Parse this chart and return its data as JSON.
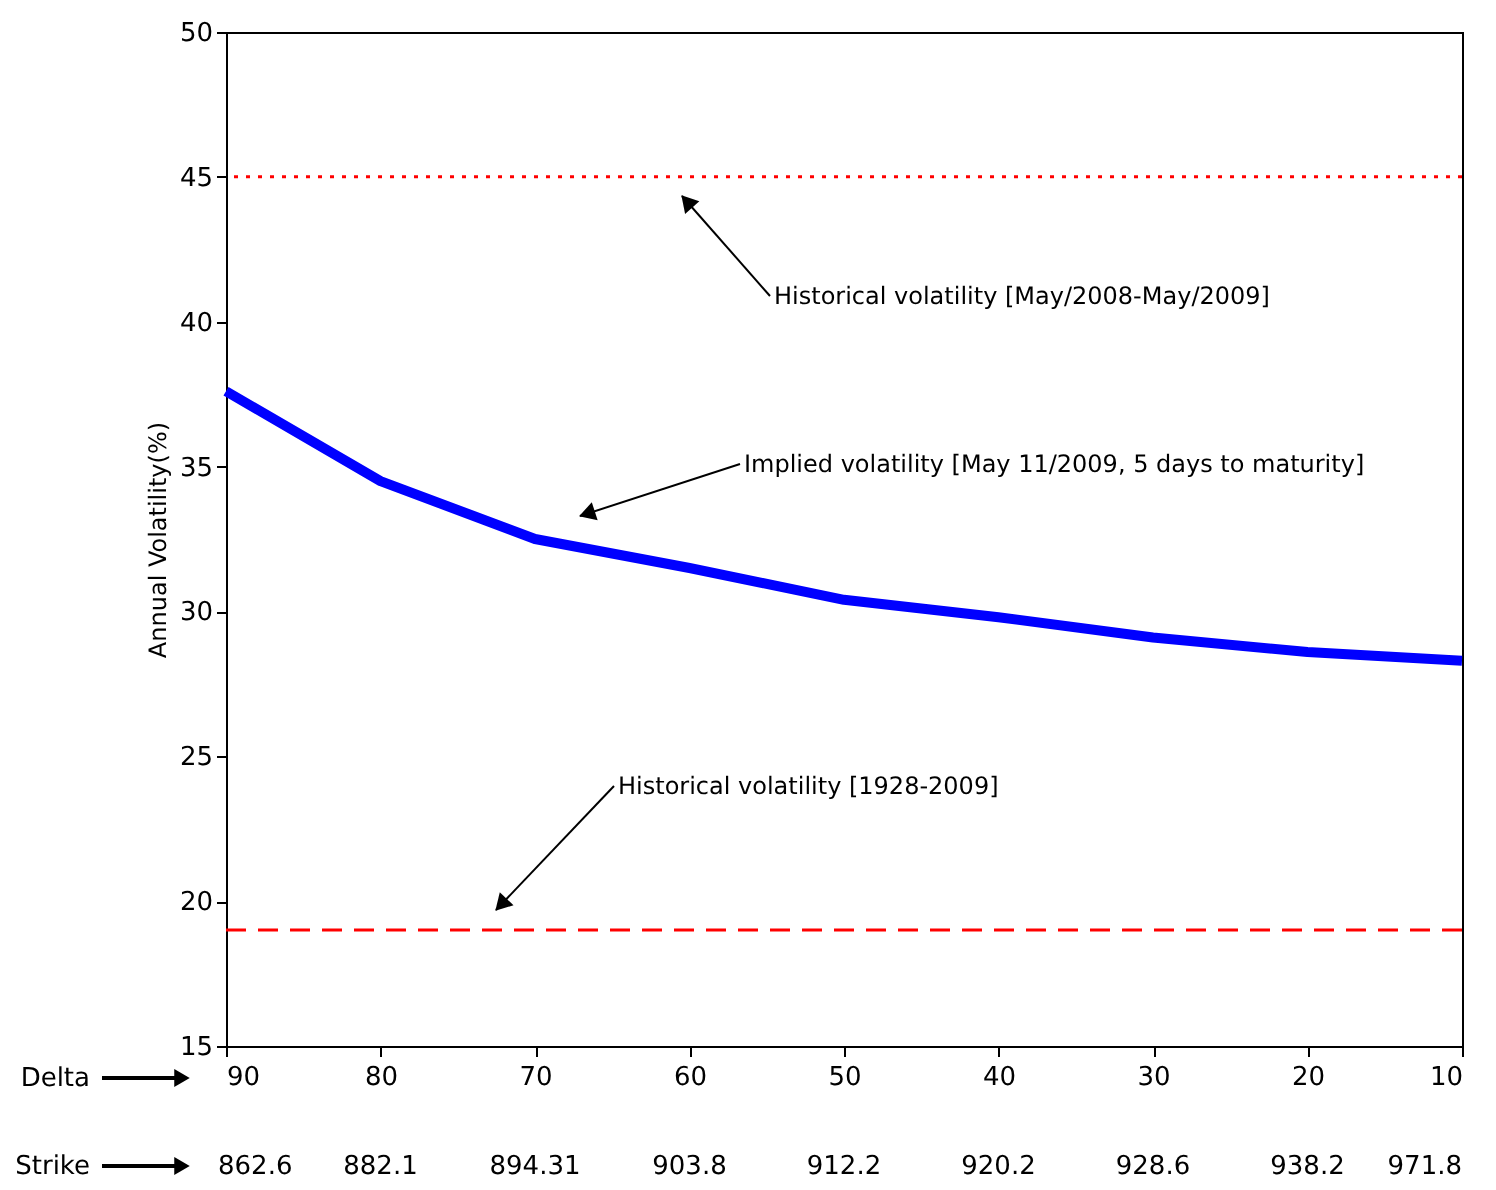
{
  "chart_data": {
    "type": "line",
    "ylabel": "Annual Volatility(%)",
    "xlabel": "Delta",
    "x": [
      90,
      80,
      70,
      60,
      50,
      40,
      30,
      20,
      10
    ],
    "series": [
      {
        "color": "#0000ff",
        "values": [
          37.6,
          34.5,
          32.5,
          31.5,
          30.4,
          29.8,
          29.1,
          28.6,
          28.3
        ]
      }
    ],
    "xlim": [
      90,
      10
    ],
    "xticks": [
      90,
      80,
      70,
      60,
      50,
      40,
      30,
      20,
      10
    ],
    "ylim": [
      15,
      50
    ],
    "yticks": [
      15,
      20,
      25,
      30,
      35,
      40,
      45,
      50
    ],
    "ref_lines": [
      {
        "axis": "y",
        "value": 45,
        "color": "#ff0000",
        "line_style": "dotted"
      },
      {
        "axis": "y",
        "value": 19,
        "color": "#ff0000",
        "line_style": "dashed"
      }
    ],
    "annotations": [
      "Historical volatility [May/2008-May/2009]",
      "Implied volatility [May 11/2009, 5 days to maturity]",
      "Historical volatility [1928-2009]",
      "Strike",
      "862.6",
      "882.1",
      "894.31",
      "903.8",
      "912.2",
      "920.2",
      "928.6",
      "938.2",
      "971.8"
    ],
    "grid": false,
    "marker": "none",
    "line_style": "solid"
  }
}
